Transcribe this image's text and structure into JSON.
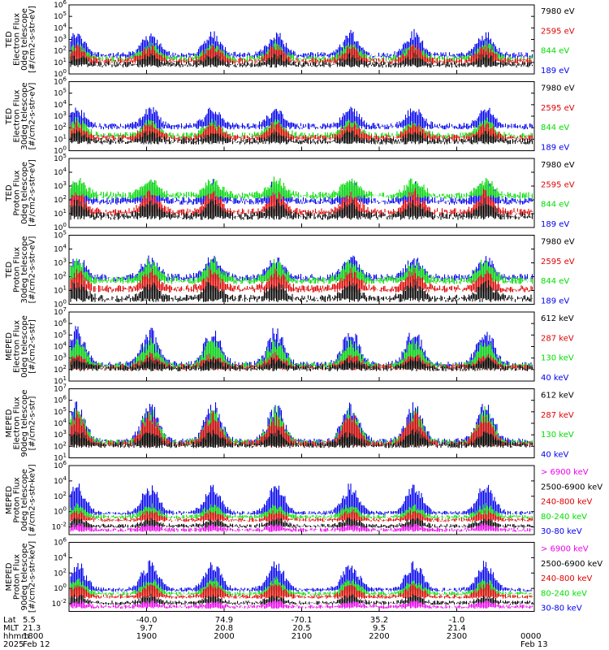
{
  "chart_data": [
    {
      "type": "line",
      "ylabel_lines": [
        "TED",
        "Electron Flux",
        "0deg telescope",
        "[#/cm2-s-str-eV]"
      ],
      "yscale": "log",
      "ylim": [
        1,
        1000000
      ],
      "ytick_labels": [
        "10^0",
        "10^1",
        "10^2",
        "10^3",
        "10^4",
        "10^5",
        "10^6"
      ],
      "legend": [
        {
          "label": "7980 eV",
          "color": "#000000"
        },
        {
          "label": "2595 eV",
          "color": "#e00000"
        },
        {
          "label": "844 eV",
          "color": "#00dd00"
        },
        {
          "label": "189 eV",
          "color": "#0000ee"
        }
      ],
      "series_levels": [
        [
          0.7,
          1.5
        ],
        [
          1.0,
          2.3
        ],
        [
          1.2,
          2.6
        ],
        [
          1.5,
          3.6
        ]
      ]
    },
    {
      "type": "line",
      "ylabel_lines": [
        "TED",
        "Electron Flux",
        "30deg telescope",
        "[#/cm2-s-str-eV]"
      ],
      "yscale": "log",
      "ylim": [
        1,
        1000000
      ],
      "ytick_labels": [
        "10^0",
        "10^1",
        "10^2",
        "10^3",
        "10^4",
        "10^5",
        "10^6"
      ],
      "legend": [
        {
          "label": "7980 eV",
          "color": "#000000"
        },
        {
          "label": "2595 eV",
          "color": "#e00000"
        },
        {
          "label": "844 eV",
          "color": "#00dd00"
        },
        {
          "label": "189 eV",
          "color": "#0000ee"
        }
      ],
      "series_levels": [
        [
          0.7,
          1.5
        ],
        [
          1.0,
          2.3
        ],
        [
          1.2,
          2.6
        ],
        [
          2.0,
          3.6
        ]
      ]
    },
    {
      "type": "line",
      "ylabel_lines": [
        "TED",
        "Proton Flux",
        "0deg telescope",
        "[#/cm2-s-str-eV]"
      ],
      "yscale": "log",
      "ylim": [
        1,
        100000
      ],
      "ytick_labels": [
        "10^0",
        "10^1",
        "10^2",
        "10^3",
        "10^4",
        "10^5"
      ],
      "legend": [
        {
          "label": "7980 eV",
          "color": "#000000"
        },
        {
          "label": "2595 eV",
          "color": "#e00000"
        },
        {
          "label": "844 eV",
          "color": "#00dd00"
        },
        {
          "label": "189 eV",
          "color": "#0000ee"
        }
      ],
      "series_levels": [
        [
          0.7,
          1.8
        ],
        [
          1.0,
          2.5
        ],
        [
          2.2,
          3.4
        ],
        [
          1.8,
          3.2
        ]
      ]
    },
    {
      "type": "line",
      "ylabel_lines": [
        "TED",
        "Proton Flux",
        "30deg telescope",
        "[#/cm2-s-str-eV]"
      ],
      "yscale": "log",
      "ylim": [
        1,
        100000
      ],
      "ytick_labels": [
        "10^0",
        "10^1",
        "10^2",
        "10^3",
        "10^4",
        "10^5"
      ],
      "legend": [
        {
          "label": "7980 eV",
          "color": "#000000"
        },
        {
          "label": "2595 eV",
          "color": "#e00000"
        },
        {
          "label": "844 eV",
          "color": "#00dd00"
        },
        {
          "label": "189 eV",
          "color": "#0000ee"
        }
      ],
      "series_levels": [
        [
          0.3,
          1.5
        ],
        [
          1.0,
          2.3
        ],
        [
          1.6,
          3.1
        ],
        [
          1.8,
          3.3
        ]
      ]
    },
    {
      "type": "line",
      "ylabel_lines": [
        "MEPED",
        "Electron Flux",
        "0deg telescope",
        "[#/cm2-s-str]"
      ],
      "yscale": "log",
      "ylim": [
        10,
        10000000
      ],
      "ytick_labels": [
        "10^1",
        "10^2",
        "10^3",
        "10^4",
        "10^5",
        "10^6",
        "10^7"
      ],
      "legend": [
        {
          "label": "612 keV",
          "color": "#000000"
        },
        {
          "label": "287 keV",
          "color": "#e00000"
        },
        {
          "label": "130 keV",
          "color": "#00dd00"
        },
        {
          "label": "40 keV",
          "color": "#0000ee"
        }
      ],
      "series_levels": [
        [
          2.0,
          2.8
        ],
        [
          2.1,
          3.2
        ],
        [
          2.2,
          4.6
        ],
        [
          2.3,
          5.6
        ]
      ]
    },
    {
      "type": "line",
      "ylabel_lines": [
        "MEPED",
        "Electron Flux",
        "90deg telescope",
        "[#/cm2-s-str]"
      ],
      "yscale": "log",
      "ylim": [
        10,
        10000000
      ],
      "ytick_labels": [
        "10^1",
        "10^2",
        "10^3",
        "10^4",
        "10^5",
        "10^6",
        "10^7"
      ],
      "legend": [
        {
          "label": "612 keV",
          "color": "#000000"
        },
        {
          "label": "287 keV",
          "color": "#e00000"
        },
        {
          "label": "130 keV",
          "color": "#00dd00"
        },
        {
          "label": "40 keV",
          "color": "#0000ee"
        }
      ],
      "series_levels": [
        [
          2.0,
          3.2
        ],
        [
          2.1,
          4.8
        ],
        [
          2.2,
          5.2
        ],
        [
          2.3,
          5.8
        ]
      ]
    },
    {
      "type": "line",
      "ylabel_lines": [
        "MEPED",
        "Proton Flux",
        "0deg telescope",
        "[#/cm2-s-str-keV]"
      ],
      "yscale": "log",
      "ylim": [
        0.001,
        1000000
      ],
      "ytick_labels": [
        "10^-2",
        "10^0",
        "10^2",
        "10^4",
        "10^6"
      ],
      "legend": [
        {
          "label": "> 6900 keV",
          "color": "#ee00ee"
        },
        {
          "label": "2500-6900 keV",
          "color": "#000000"
        },
        {
          "label": "240-800 keV",
          "color": "#e00000"
        },
        {
          "label": "80-240 keV",
          "color": "#00dd00"
        },
        {
          "label": "30-80 keV",
          "color": "#0000ee"
        }
      ],
      "series_levels": [
        [
          -2.5,
          -1.8
        ],
        [
          -2.0,
          -1.0
        ],
        [
          -1.2,
          0.0
        ],
        [
          -0.8,
          0.8
        ],
        [
          -0.3,
          3.5
        ]
      ]
    },
    {
      "type": "line",
      "ylabel_lines": [
        "MEPED",
        "Proton Flux",
        "90deg telescope",
        "[#/cm2-s-str-keV]"
      ],
      "yscale": "log",
      "ylim": [
        0.001,
        1000000
      ],
      "ytick_labels": [
        "10^-2",
        "10^0",
        "10^2",
        "10^4",
        "10^6"
      ],
      "legend": [
        {
          "label": "> 6900 keV",
          "color": "#ee00ee"
        },
        {
          "label": "2500-6900 keV",
          "color": "#000000"
        },
        {
          "label": "240-800 keV",
          "color": "#e00000"
        },
        {
          "label": "80-240 keV",
          "color": "#00dd00"
        },
        {
          "label": "30-80 keV",
          "color": "#0000ee"
        }
      ],
      "series_levels": [
        [
          -2.5,
          -1.8
        ],
        [
          -2.0,
          -1.0
        ],
        [
          -1.2,
          0.5
        ],
        [
          -0.8,
          1.2
        ],
        [
          -0.3,
          3.5
        ]
      ]
    }
  ],
  "x_axis": {
    "row_labels": [
      "Lat",
      "MLT",
      "hhmm",
      "2025"
    ],
    "columns": [
      {
        "lat": "5.5",
        "mlt": "21.3",
        "hhmm": "1800",
        "date": "Feb 12"
      },
      {
        "lat": "-40.0",
        "mlt": "9.7",
        "hhmm": "1900",
        "date": ""
      },
      {
        "lat": "74.9",
        "mlt": "20.8",
        "hhmm": "2000",
        "date": ""
      },
      {
        "lat": "-70.1",
        "mlt": "20.5",
        "hhmm": "2100",
        "date": ""
      },
      {
        "lat": "35.2",
        "mlt": "9.5",
        "hhmm": "2200",
        "date": ""
      },
      {
        "lat": "-1.0",
        "mlt": "21.4",
        "hhmm": "2300",
        "date": ""
      },
      {
        "lat": "",
        "mlt": "",
        "hhmm": "0000",
        "date": "Feb 13"
      }
    ]
  },
  "colors": {
    "black": "#000000",
    "red": "#e00000",
    "green": "#00dd00",
    "blue": "#0000ee",
    "magenta": "#ee00ee"
  }
}
